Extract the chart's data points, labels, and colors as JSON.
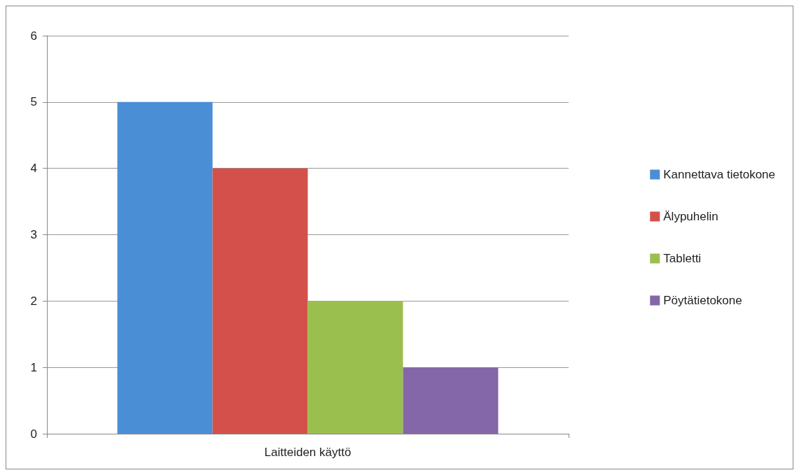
{
  "chart_data": {
    "type": "bar",
    "categories": [
      "Laitteiden käyttö"
    ],
    "series": [
      {
        "name": "Kannettava tietokone",
        "color": "#4a8fd6",
        "values": [
          5
        ]
      },
      {
        "name": "Älypuhelin",
        "color": "#d4504a",
        "values": [
          4
        ]
      },
      {
        "name": "Tabletti",
        "color": "#9bbf4f",
        "values": [
          2
        ]
      },
      {
        "name": "Pöytätietokone",
        "color": "#8467a8",
        "values": [
          1
        ]
      }
    ],
    "ylim": [
      0,
      6
    ],
    "yticks": [
      0,
      1,
      2,
      3,
      4,
      5,
      6
    ],
    "grid": "y",
    "legend": "right"
  }
}
